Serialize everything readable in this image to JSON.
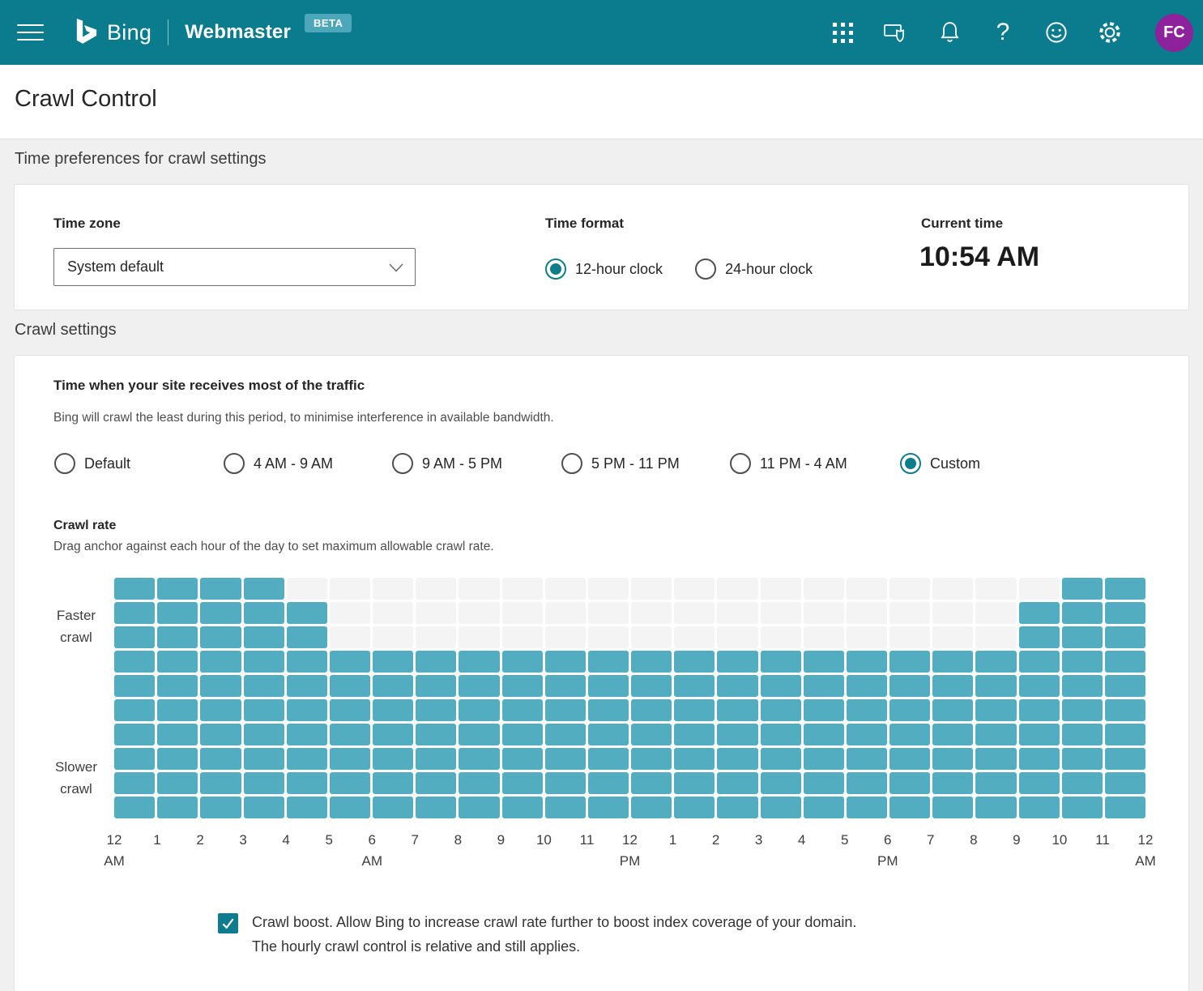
{
  "header": {
    "product": "Bing",
    "app": "Webmaster",
    "beta_badge": "BETA",
    "help_glyph": "?",
    "avatar_initials": "FC",
    "icons": [
      "apps-grid",
      "screen-shield",
      "notifications-bell",
      "help",
      "feedback-smiley",
      "settings-gear"
    ]
  },
  "page": {
    "title": "Crawl Control"
  },
  "sections": {
    "time_prefs": {
      "heading": "Time preferences for crawl settings",
      "time_zone": {
        "label": "Time zone",
        "selected": "System default"
      },
      "time_format": {
        "label": "Time format",
        "options": [
          {
            "label": "12-hour clock",
            "selected": true
          },
          {
            "label": "24-hour clock",
            "selected": false
          }
        ]
      },
      "current_time": {
        "label": "Current time",
        "value": "10:54 AM"
      }
    },
    "crawl_settings": {
      "heading": "Crawl settings",
      "traffic_title": "Time when your site receives most of the traffic",
      "traffic_desc": "Bing will crawl the least during this period, to minimise interference in available bandwidth.",
      "traffic_options": [
        {
          "label": "Default",
          "selected": false
        },
        {
          "label": "4 AM - 9 AM",
          "selected": false
        },
        {
          "label": "9 AM - 5 PM",
          "selected": false
        },
        {
          "label": "5 PM - 11 PM",
          "selected": false
        },
        {
          "label": "11 PM - 4 AM",
          "selected": false
        },
        {
          "label": "Custom",
          "selected": true
        }
      ],
      "crawl_boost": {
        "checked": true,
        "line1": "Crawl boost. Allow Bing to increase crawl rate further to boost index coverage of your domain.",
        "line2": "The hourly crawl control is relative and still applies."
      }
    }
  },
  "chart_data": {
    "type": "bar",
    "title": "Crawl rate",
    "subtitle": "Drag anchor against each hour of the day to set maximum allowable crawl rate.",
    "categories": [
      "12 AM",
      "1 AM",
      "2 AM",
      "3 AM",
      "4 AM",
      "5 AM",
      "6 AM",
      "7 AM",
      "8 AM",
      "9 AM",
      "10 AM",
      "11 AM",
      "12 PM",
      "1 PM",
      "2 PM",
      "3 PM",
      "4 PM",
      "5 PM",
      "6 PM",
      "7 PM",
      "8 PM",
      "9 PM",
      "10 PM",
      "11 PM"
    ],
    "values": [
      10,
      10,
      10,
      10,
      9,
      7,
      7,
      7,
      7,
      7,
      7,
      7,
      7,
      7,
      7,
      7,
      7,
      7,
      7,
      7,
      7,
      9,
      10,
      10
    ],
    "max_rows": 10,
    "note": "values = filled cells per hour column out of 10, filled upward from the bottom row",
    "ylabel_top": "Faster crawl",
    "ylabel_bottom": "Slower crawl",
    "ticks": [
      {
        "main": "12",
        "sub": "AM"
      },
      {
        "main": "1",
        "sub": ""
      },
      {
        "main": "2",
        "sub": ""
      },
      {
        "main": "3",
        "sub": ""
      },
      {
        "main": "4",
        "sub": ""
      },
      {
        "main": "5",
        "sub": ""
      },
      {
        "main": "6",
        "sub": "AM"
      },
      {
        "main": "7",
        "sub": ""
      },
      {
        "main": "8",
        "sub": ""
      },
      {
        "main": "9",
        "sub": ""
      },
      {
        "main": "10",
        "sub": ""
      },
      {
        "main": "11",
        "sub": ""
      },
      {
        "main": "12",
        "sub": "PM"
      },
      {
        "main": "1",
        "sub": ""
      },
      {
        "main": "2",
        "sub": ""
      },
      {
        "main": "3",
        "sub": ""
      },
      {
        "main": "4",
        "sub": ""
      },
      {
        "main": "5",
        "sub": ""
      },
      {
        "main": "6",
        "sub": "PM"
      },
      {
        "main": "7",
        "sub": ""
      },
      {
        "main": "8",
        "sub": ""
      },
      {
        "main": "9",
        "sub": ""
      },
      {
        "main": "10",
        "sub": ""
      },
      {
        "main": "11",
        "sub": ""
      },
      {
        "main": "12",
        "sub": "AM"
      }
    ],
    "legend": "none",
    "grid": "cells with white gaps",
    "cell_color": "#53adc1",
    "empty_cell_color": "#f4f4f4"
  },
  "colors": {
    "header_teal": "#0b7b8e",
    "beta_badge": "#4ba7b9",
    "avatar_purple": "#8d229c",
    "accent_teal": "#0f7c8c",
    "cell_teal": "#53adc1",
    "page_background": "#f0f0f0"
  }
}
